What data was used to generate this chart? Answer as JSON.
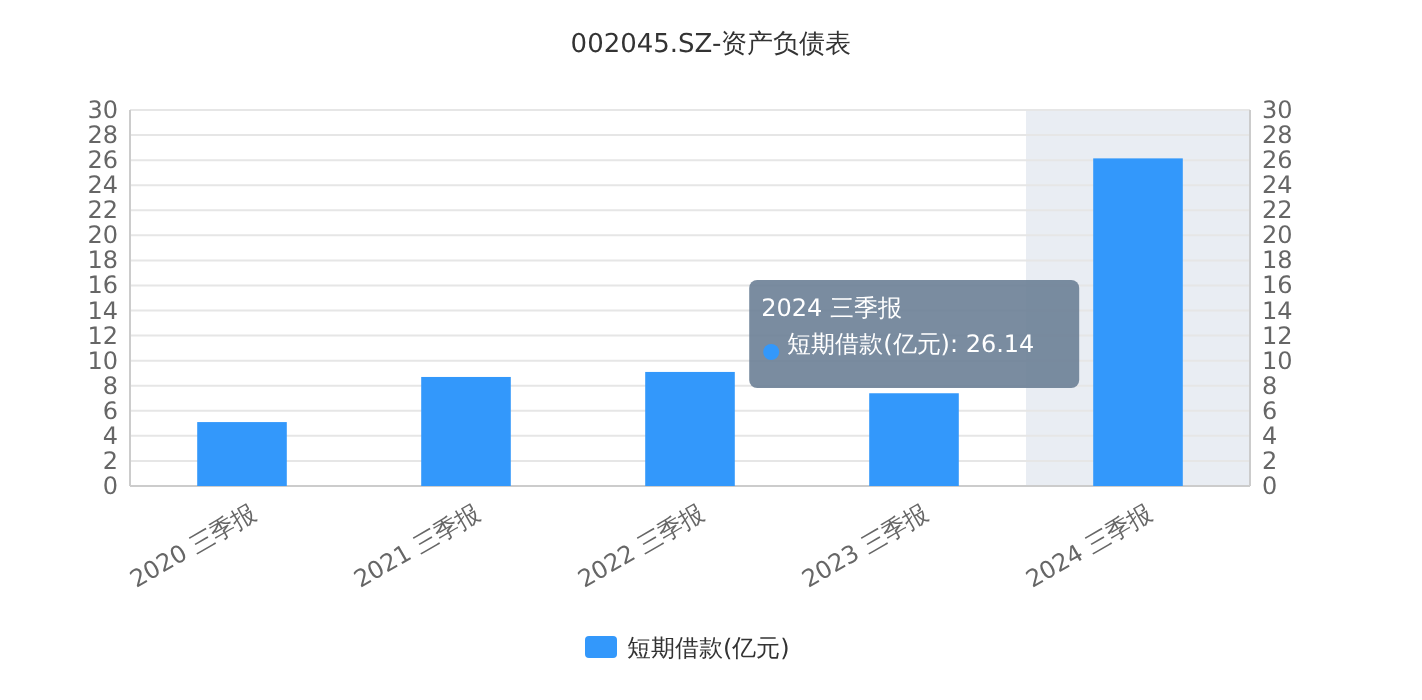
{
  "chart_data": {
    "type": "bar",
    "title": "002045.SZ-资产负债表",
    "categories": [
      "2020 三季报",
      "2021 三季报",
      "2022 三季报",
      "2023 三季报",
      "2024 三季报"
    ],
    "series": [
      {
        "name": "短期借款(亿元)",
        "color": "#3398fb",
        "values": [
          5.1,
          8.7,
          9.1,
          7.4,
          26.14
        ]
      }
    ],
    "ylim": [
      0,
      30
    ],
    "yticks": [
      0,
      2,
      4,
      6,
      8,
      10,
      12,
      14,
      16,
      18,
      20,
      22,
      24,
      26,
      28,
      30
    ],
    "y2lim": [
      0,
      30
    ],
    "y2ticks": [
      0,
      2,
      4,
      6,
      8,
      10,
      12,
      14,
      16,
      18,
      20,
      22,
      24,
      26,
      28,
      30
    ],
    "grid": "y",
    "legend": "bottom",
    "bands": [
      {
        "axis": "x",
        "from": "2024 三季报",
        "to": "2024 三季报",
        "color": "#e9edf3"
      }
    ],
    "annotations": [
      "2024 三季报",
      "短期借款(亿元): 26.14"
    ]
  }
}
